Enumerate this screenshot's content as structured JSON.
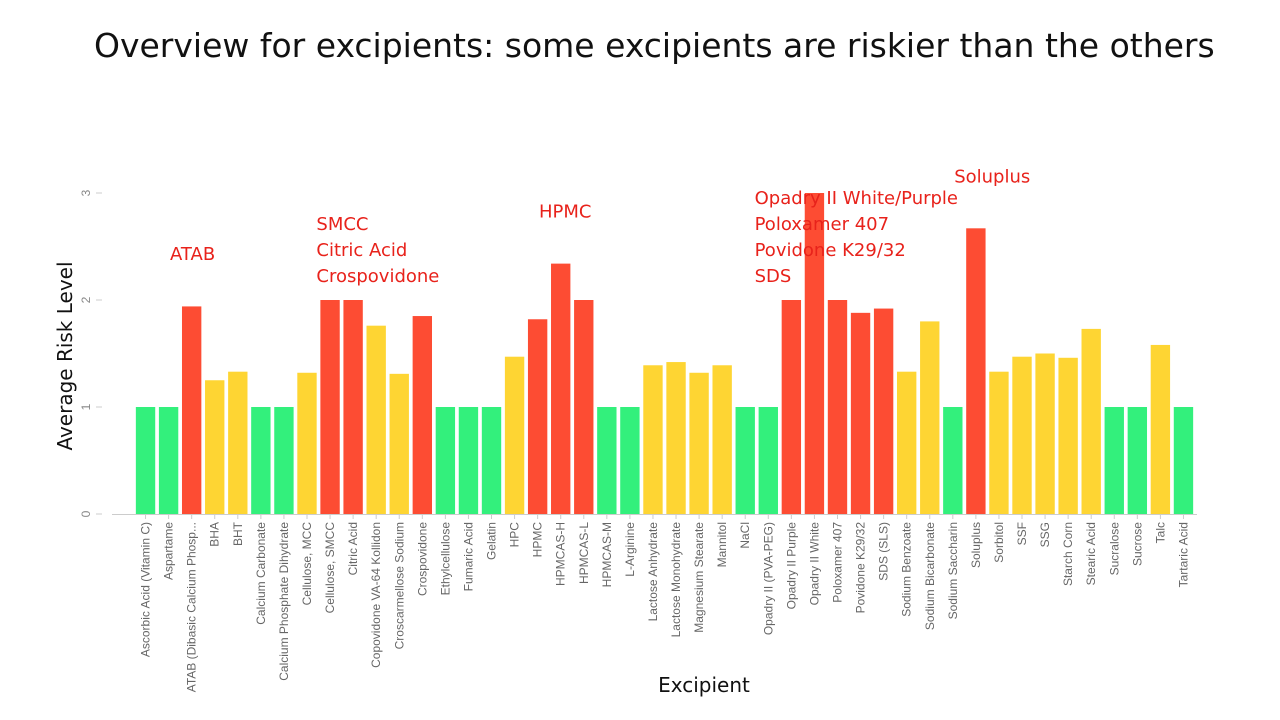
{
  "slide": {
    "title": "Overview for excipients: some excipients are riskier than the others"
  },
  "chart_data": {
    "type": "bar",
    "xlabel": "Excipient",
    "ylabel": "Average Risk Level",
    "ylim": [
      0,
      3
    ],
    "yticks": [
      0,
      1,
      2,
      3
    ],
    "grid": false,
    "colors": {
      "low": "#33f07c",
      "medium": "#fed533",
      "high": "#fd4c33"
    },
    "categories": [
      "Ascorbic Acid (Vitamin C)",
      "Aspartame",
      "ATAB (Dibasic Calcium Phosp...",
      "BHA",
      "BHT",
      "Calcium Carbonate",
      "Calcium Phosphate Dihydrate",
      "Cellulose, MCC",
      "Cellulose, SMCC",
      "Citric Acid",
      "Copovidone VA-64 Kollidon",
      "Croscarmellose Sodium",
      "Crospovidone",
      "Ethylcellulose",
      "Fumaric Acid",
      "Gelatin",
      "HPC",
      "HPMC",
      "HPMCAS-H",
      "HPMCAS-L",
      "HPMCAS-M",
      "L-Arginine",
      "Lactose Anhydrate",
      "Lactose Monohydrate",
      "Magnesium Stearate",
      "Mannitol",
      "NaCl",
      "Opadry II (PVA-PEG)",
      "Opadry II Purple",
      "Opadry II White",
      "Poloxamer 407",
      "Povidone K29/32",
      "SDS (SLS)",
      "Sodium Benzoate",
      "Sodium Bicarbonate",
      "Sodium Saccharin",
      "Soluplus",
      "Sorbitol",
      "SSF",
      "SSG",
      "Starch Corn",
      "Stearic Acid",
      "Sucralose",
      "Sucrose",
      "Talc",
      "Tartaric Acid"
    ],
    "values": [
      1.0,
      1.0,
      1.94,
      1.25,
      1.33,
      1.0,
      1.0,
      1.32,
      2.0,
      2.0,
      1.76,
      1.31,
      1.85,
      1.0,
      1.0,
      1.0,
      1.47,
      1.82,
      2.34,
      2.0,
      1.0,
      1.0,
      1.39,
      1.42,
      1.32,
      1.39,
      1.0,
      1.0,
      2.0,
      3.0,
      2.0,
      1.88,
      1.92,
      1.33,
      1.8,
      1.0,
      2.67,
      1.33,
      1.47,
      1.5,
      1.46,
      1.73,
      1.0,
      1.0,
      1.58,
      1.0
    ],
    "levels": [
      "low",
      "low",
      "high",
      "medium",
      "medium",
      "low",
      "low",
      "medium",
      "high",
      "high",
      "medium",
      "medium",
      "high",
      "low",
      "low",
      "low",
      "medium",
      "high",
      "high",
      "high",
      "low",
      "low",
      "medium",
      "medium",
      "medium",
      "medium",
      "low",
      "low",
      "high",
      "high",
      "high",
      "high",
      "high",
      "medium",
      "medium",
      "low",
      "high",
      "medium",
      "medium",
      "medium",
      "medium",
      "medium",
      "low",
      "low",
      "medium",
      "low"
    ],
    "annotations": [
      {
        "lines": [
          "ATAB"
        ],
        "category": "ATAB (Dibasic Calcium Phosp..."
      },
      {
        "lines": [
          "SMCC",
          "Citric Acid",
          "Crospovidone"
        ],
        "category": "Cellulose, SMCC"
      },
      {
        "lines": [
          "HPMC"
        ],
        "category": "HPMCAS-H"
      },
      {
        "lines": [
          "Opadry II White/Purple",
          "Poloxamer 407",
          "Povidone K29/32",
          "SDS"
        ],
        "category": "Opadry II (PVA-PEG)"
      },
      {
        "lines": [
          "Soluplus"
        ],
        "category": "Soluplus"
      }
    ]
  }
}
